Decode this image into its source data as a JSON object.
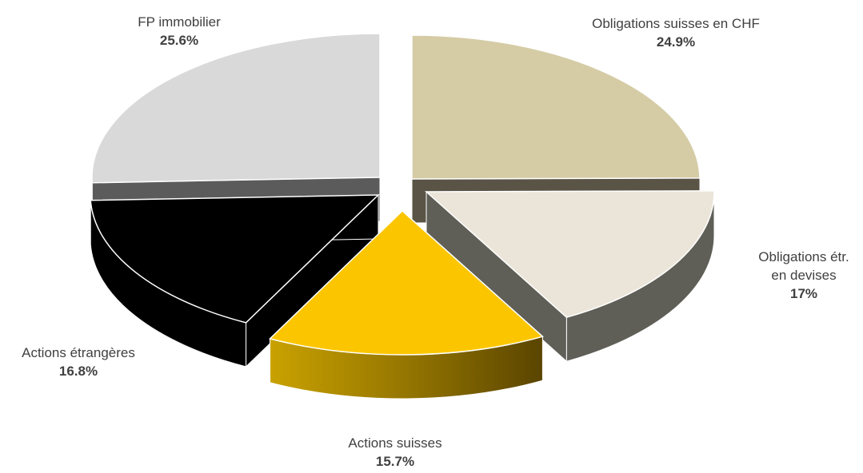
{
  "chart_data": {
    "type": "pie",
    "title": "",
    "legend": "none",
    "slices": [
      {
        "label": "Obligations suisses en CHF",
        "label_lines": [
          "Obligations suisses en CHF"
        ],
        "value": 24.9,
        "display": "24.9%",
        "top_color": "#d5cca6",
        "side_color": "#5a5446"
      },
      {
        "label": "Obligations étr. en devises",
        "label_lines": [
          "Obligations étr.",
          "en devises"
        ],
        "value": 17.0,
        "display": "17%",
        "top_color": "#ebe5d9",
        "side_color": "#5f5f58"
      },
      {
        "label": "Actions suisses",
        "label_lines": [
          "Actions suisses"
        ],
        "value": 15.7,
        "display": "15.7%",
        "top_color": "#fbc600",
        "side_color": "#9a7a00"
      },
      {
        "label": "Actions étrangères",
        "label_lines": [
          "Actions étrangères"
        ],
        "value": 16.8,
        "display": "16.8%",
        "top_color": "#000000",
        "side_color": "#000000"
      },
      {
        "label": "FP immobilier",
        "label_lines": [
          "FP immobilier"
        ],
        "value": 25.6,
        "display": "25.6%",
        "top_color": "#d9d9d9",
        "side_color": "#5b5b5b"
      }
    ]
  }
}
